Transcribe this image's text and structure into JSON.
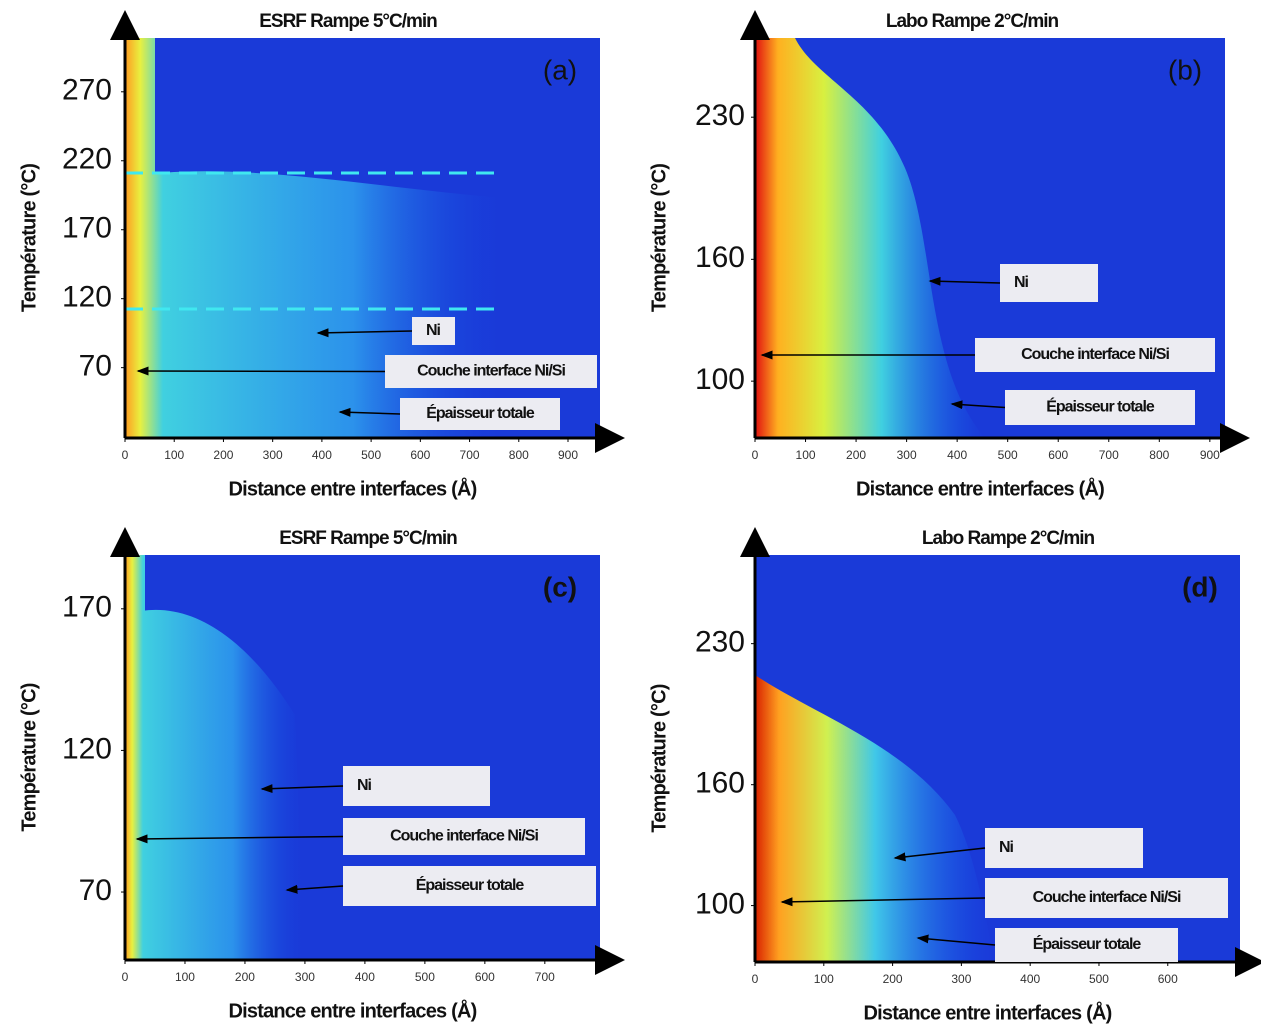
{
  "chart_data": [
    {
      "type": "heatmap",
      "title": "ESRF Rampe 5°C/min",
      "panel_label": "(a)",
      "xlabel": "Distance entre interfaces (Å)",
      "ylabel": "Température (°C)",
      "xlim": [
        0,
        965
      ],
      "ylim": [
        19,
        309
      ],
      "xticks": [
        0,
        100,
        200,
        300,
        400,
        500,
        600,
        700,
        800,
        900
      ],
      "yticks": [
        70,
        120,
        170,
        220,
        270
      ],
      "annotations": [
        "Ni",
        "Couche interface Ni/Si",
        "Épaisseur totale"
      ]
    },
    {
      "type": "heatmap",
      "title": "Labo Rampe 2°C/min",
      "panel_label": "(b)",
      "xlabel": "Distance entre interfaces (Å)",
      "ylabel": "Température (°C)",
      "xlim": [
        0,
        930
      ],
      "ylim": [
        72,
        269
      ],
      "xticks": [
        0,
        100,
        200,
        300,
        400,
        500,
        600,
        700,
        800,
        900
      ],
      "yticks": [
        100,
        160,
        230
      ],
      "annotations": [
        "Ni",
        "Couche interface Ni/Si",
        "Épaisseur totale"
      ]
    },
    {
      "type": "heatmap",
      "title": "ESRF Rampe 5°C/min",
      "panel_label": "(c)",
      "xlabel": "Distance entre interfaces (Å)",
      "ylabel": "Température (°C)",
      "xlim": [
        0,
        792
      ],
      "ylim": [
        46,
        189
      ],
      "xticks": [
        0,
        100,
        200,
        300,
        400,
        500,
        600,
        700
      ],
      "yticks": [
        70,
        120,
        170
      ],
      "annotations": [
        "Ni",
        "Couche interface Ni/Si",
        "Épaisseur totale"
      ]
    },
    {
      "type": "heatmap",
      "title": "Labo Rampe 2°C/min",
      "panel_label": "(d)",
      "xlabel": "Distance entre interfaces (Å)",
      "ylabel": "Température (°C)",
      "xlim": [
        0,
        705
      ],
      "ylim": [
        72,
        274
      ],
      "xticks": [
        0,
        100,
        200,
        300,
        400,
        500,
        600
      ],
      "yticks": [
        100,
        160,
        230
      ],
      "annotations": [
        "Ni",
        "Couche interface Ni/Si",
        "Épaisseur totale"
      ]
    }
  ]
}
